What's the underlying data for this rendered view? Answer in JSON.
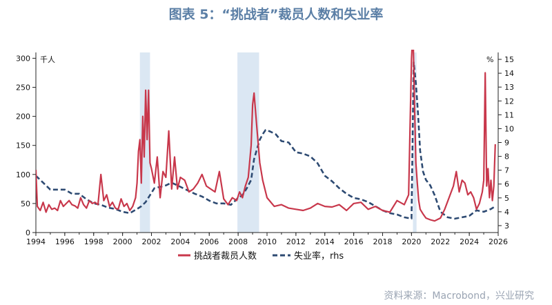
{
  "title": "图表 5：“挑战者”裁员人数和失业率",
  "source": "资料来源：Macrobond，兴业研究",
  "chart_data": {
    "type": "line",
    "left_unit": "千人",
    "right_unit": "%",
    "xlim": [
      1994,
      2026
    ],
    "ylim_left": [
      0,
      310
    ],
    "ylim_right": [
      2.5,
      15.5
    ],
    "x_ticks": [
      "1994",
      "1996",
      "1998",
      "2000",
      "2002",
      "2004",
      "2006",
      "2008",
      "2010",
      "2012",
      "2014",
      "2016",
      "2018",
      "2020",
      "2022",
      "2024",
      "2026"
    ],
    "y_left_ticks": [
      "0",
      "50",
      "100",
      "150",
      "200",
      "250",
      "300"
    ],
    "y_right_ticks": [
      "3",
      "4",
      "5",
      "6",
      "7",
      "8",
      "9",
      "10",
      "11",
      "12",
      "13",
      "14",
      "15"
    ],
    "shaded": [
      [
        2001.2,
        2001.9
      ],
      [
        2007.95,
        2009.45
      ],
      [
        2020.1,
        2020.35
      ]
    ],
    "colors": {
      "layoffs": "#c8374b",
      "unemployment": "#2d4a72",
      "shading": "#dbe7f3",
      "title": "#5b7fa6"
    },
    "series": [
      {
        "name": "挑战者裁员人数",
        "axis": "left",
        "style": "solid",
        "x": [
          1994.0,
          1994.1,
          1994.3,
          1994.5,
          1994.7,
          1994.9,
          1995.1,
          1995.3,
          1995.5,
          1995.7,
          1995.9,
          1996.1,
          1996.3,
          1996.5,
          1996.7,
          1996.9,
          1997.1,
          1997.3,
          1997.5,
          1997.7,
          1997.9,
          1998.1,
          1998.3,
          1998.5,
          1998.7,
          1998.9,
          1999.1,
          1999.3,
          1999.5,
          1999.7,
          1999.9,
          2000.1,
          2000.3,
          2000.5,
          2000.7,
          2000.9,
          2001.0,
          2001.1,
          2001.2,
          2001.3,
          2001.4,
          2001.5,
          2001.6,
          2001.7,
          2001.8,
          2001.9,
          2002.0,
          2002.2,
          2002.4,
          2002.6,
          2002.8,
          2003.0,
          2003.2,
          2003.4,
          2003.6,
          2003.8,
          2004.0,
          2004.3,
          2004.6,
          2004.9,
          2005.2,
          2005.5,
          2005.8,
          2006.1,
          2006.4,
          2006.7,
          2007.0,
          2007.3,
          2007.6,
          2007.9,
          2008.1,
          2008.3,
          2008.5,
          2008.7,
          2008.9,
          2009.0,
          2009.1,
          2009.3,
          2009.5,
          2009.7,
          2010.0,
          2010.5,
          2011.0,
          2011.5,
          2012.0,
          2012.5,
          2013.0,
          2013.5,
          2014.0,
          2014.5,
          2015.0,
          2015.5,
          2016.0,
          2016.5,
          2017.0,
          2017.5,
          2018.0,
          2018.5,
          2019.0,
          2019.5,
          2019.8,
          2020.0,
          2020.1,
          2020.2,
          2020.3,
          2020.4,
          2020.5,
          2020.6,
          2020.8,
          2021.0,
          2021.3,
          2021.6,
          2022.0,
          2022.3,
          2022.6,
          2022.9,
          2023.1,
          2023.3,
          2023.5,
          2023.7,
          2023.9,
          2024.1,
          2024.3,
          2024.5,
          2024.7,
          2024.9,
          2025.0,
          2025.1,
          2025.2,
          2025.3,
          2025.4,
          2025.5,
          2025.6,
          2025.7,
          2025.8
        ],
        "values": [
          108,
          45,
          38,
          52,
          35,
          48,
          40,
          42,
          38,
          55,
          45,
          50,
          55,
          48,
          46,
          42,
          60,
          48,
          42,
          55,
          50,
          52,
          48,
          100,
          55,
          65,
          45,
          52,
          42,
          40,
          58,
          45,
          50,
          38,
          45,
          60,
          85,
          140,
          160,
          85,
          200,
          130,
          245,
          160,
          245,
          120,
          110,
          85,
          130,
          60,
          105,
          95,
          175,
          75,
          130,
          75,
          95,
          90,
          70,
          75,
          85,
          100,
          80,
          75,
          70,
          105,
          58,
          48,
          60,
          55,
          70,
          60,
          80,
          95,
          150,
          220,
          240,
          180,
          120,
          90,
          60,
          45,
          48,
          42,
          40,
          38,
          42,
          50,
          45,
          44,
          48,
          38,
          50,
          52,
          40,
          45,
          38,
          35,
          55,
          48,
          65,
          300,
          350,
          230,
          120,
          85,
          55,
          40,
          32,
          25,
          22,
          20,
          25,
          40,
          60,
          80,
          105,
          70,
          90,
          85,
          65,
          70,
          60,
          40,
          50,
          70,
          90,
          275,
          80,
          110,
          60,
          90,
          55,
          80,
          152
        ]
      },
      {
        "name": "失业率，rhs",
        "axis": "right",
        "style": "dashed",
        "x": [
          1994.0,
          1994.5,
          1995.0,
          1995.5,
          1996.0,
          1996.5,
          1997.0,
          1997.5,
          1998.0,
          1998.5,
          1999.0,
          1999.5,
          2000.0,
          2000.5,
          2001.0,
          2001.3,
          2001.6,
          2001.9,
          2002.2,
          2002.6,
          2003.0,
          2003.4,
          2003.8,
          2004.2,
          2004.6,
          2005.0,
          2005.5,
          2006.0,
          2006.5,
          2007.0,
          2007.5,
          2008.0,
          2008.3,
          2008.6,
          2008.9,
          2009.1,
          2009.3,
          2009.5,
          2009.7,
          2009.9,
          2010.2,
          2010.6,
          2011.0,
          2011.5,
          2012.0,
          2012.5,
          2013.0,
          2013.5,
          2014.0,
          2014.5,
          2015.0,
          2015.5,
          2016.0,
          2016.5,
          2017.0,
          2017.5,
          2018.0,
          2018.5,
          2019.0,
          2019.5,
          2020.0,
          2020.15,
          2020.3,
          2020.45,
          2020.6,
          2020.8,
          2021.0,
          2021.3,
          2021.6,
          2022.0,
          2022.5,
          2023.0,
          2023.5,
          2024.0,
          2024.5,
          2025.0,
          2025.5,
          2025.8
        ],
        "values": [
          6.6,
          6.1,
          5.6,
          5.6,
          5.6,
          5.3,
          5.3,
          4.9,
          4.6,
          4.5,
          4.3,
          4.2,
          4.0,
          3.9,
          4.2,
          4.4,
          4.7,
          5.2,
          5.7,
          5.8,
          5.9,
          6.1,
          5.9,
          5.7,
          5.5,
          5.3,
          5.1,
          4.8,
          4.6,
          4.6,
          4.5,
          5.0,
          5.2,
          5.7,
          6.3,
          7.8,
          8.5,
          9.2,
          9.6,
          9.9,
          9.8,
          9.6,
          9.1,
          9.0,
          8.3,
          8.2,
          8.0,
          7.5,
          6.6,
          6.2,
          5.7,
          5.3,
          5.0,
          4.9,
          4.7,
          4.4,
          4.1,
          3.9,
          3.8,
          3.6,
          3.5,
          14.8,
          13.3,
          11.1,
          8.4,
          6.9,
          6.3,
          5.9,
          5.2,
          4.0,
          3.6,
          3.5,
          3.6,
          3.7,
          4.1,
          4.0,
          4.2,
          4.4
        ]
      }
    ]
  }
}
